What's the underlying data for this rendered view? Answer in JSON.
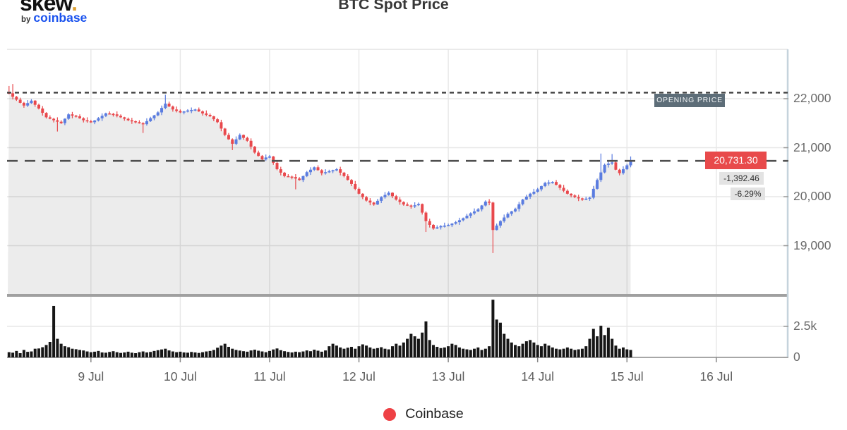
{
  "header": {
    "logo": {
      "brand": "skew",
      "dot": ".",
      "byline_prefix": "by",
      "byline_brand": "coinbase"
    },
    "title": "BTC Spot Price"
  },
  "annotations": {
    "opening_price_label": "OPENING PRICE",
    "last_price_label": "20,731.30",
    "change_abs": "-1,392.46",
    "change_pct": "-6.29%"
  },
  "legend": {
    "items": [
      {
        "label": "Coinbase",
        "color": "#ee4145"
      }
    ]
  },
  "colors": {
    "candle_up": "#5a7ce0",
    "candle_down": "#e8494d",
    "volume_bar": "#161616",
    "grid": "#e7e7e7",
    "spine_right": "#c5d3dc",
    "spine_top": "#e3e3e3",
    "separator": "#a0a0a0",
    "axis_line": "#8a8a8a",
    "dotted_line": "#3f3f3f",
    "dashed_line": "#4f4f4f",
    "area_fill": "rgba(0,0,0,0.075)",
    "opening_badge_bg": "#5d6d78",
    "price_badge_bg": "#e84a4b",
    "change_badge_bg": "#e3e3e3"
  },
  "chart_data": {
    "type": "candlestick+volume",
    "title": "BTC Spot Price",
    "series_name": "Coinbase",
    "interval": "1h",
    "x_tick_labels": [
      "9 Jul",
      "10 Jul",
      "11 Jul",
      "12 Jul",
      "13 Jul",
      "14 Jul",
      "15 Jul",
      "16 Jul"
    ],
    "candles_per_day": 24,
    "first_tick_candle_index": 22,
    "price_ticks": [
      {
        "value": 22000,
        "label": "22,000"
      },
      {
        "value": 21000,
        "label": "21,000"
      },
      {
        "value": 20000,
        "label": "20,000"
      },
      {
        "value": 19000,
        "label": "19,000"
      }
    ],
    "volume_ticks": [
      {
        "value": 2500,
        "label": "2.5k"
      },
      {
        "value": 0,
        "label": "0"
      }
    ],
    "opening_price": 22123.76,
    "last_price": 20731.3,
    "change_abs": -1392.46,
    "change_pct": -6.29,
    "open_first": 22124,
    "closes": [
      22110,
      22040,
      21980,
      21915,
      21860,
      21910,
      21960,
      21875,
      21800,
      21710,
      21620,
      21590,
      21560,
      21530,
      21500,
      21590,
      21680,
      21655,
      21640,
      21600,
      21560,
      21540,
      21520,
      21555,
      21600,
      21650,
      21700,
      21690,
      21680,
      21650,
      21620,
      21590,
      21560,
      21540,
      21520,
      21500,
      21480,
      21540,
      21600,
      21660,
      21720,
      21810,
      21900,
      21840,
      21780,
      21750,
      21720,
      21740,
      21760,
      21770,
      21780,
      21740,
      21700,
      21670,
      21640,
      21580,
      21520,
      21390,
      21260,
      21170,
      21080,
      21170,
      21260,
      21200,
      21140,
      21020,
      20900,
      20830,
      20760,
      20800,
      20820,
      20690,
      20560,
      20490,
      20420,
      20410,
      20400,
      20370,
      20340,
      20420,
      20500,
      20550,
      20600,
      20540,
      20480,
      20500,
      20520,
      20540,
      20560,
      20490,
      20420,
      20340,
      20260,
      20160,
      20060,
      19990,
      19920,
      19880,
      19840,
      19915,
      19990,
      20035,
      20080,
      20010,
      19940,
      19890,
      19840,
      19820,
      19800,
      19825,
      19850,
      19675,
      19500,
      19425,
      19350,
      19375,
      19400,
      19410,
      19420,
      19450,
      19480,
      19520,
      19560,
      19610,
      19660,
      19700,
      19740,
      19820,
      19900,
      19880,
      19320,
      19410,
      19500,
      19575,
      19650,
      19700,
      19750,
      19845,
      19940,
      20000,
      20060,
      20100,
      20150,
      20215,
      20280,
      20290,
      20300,
      20240,
      20180,
      20120,
      20060,
      20025,
      19990,
      19965,
      19940,
      19960,
      19980,
      20160,
      20340,
      20495,
      20650,
      20675,
      20700,
      20550,
      20480,
      20560,
      20640,
      20731.3
    ],
    "volumes": [
      420,
      380,
      520,
      340,
      600,
      450,
      480,
      700,
      720,
      820,
      1000,
      1250,
      4150,
      1500,
      1100,
      900,
      820,
      700,
      660,
      600,
      560,
      480,
      420,
      460,
      520,
      400,
      380,
      440,
      500,
      420,
      360,
      400,
      460,
      380,
      340,
      420,
      480,
      400,
      440,
      520,
      580,
      640,
      700,
      560,
      480,
      420,
      460,
      400,
      380,
      440,
      400,
      360,
      420,
      480,
      520,
      600,
      780,
      950,
      1100,
      850,
      700,
      600,
      550,
      500,
      460,
      560,
      620,
      540,
      480,
      420,
      520,
      640,
      720,
      580,
      500,
      440,
      400,
      460,
      420,
      480,
      560,
      500,
      620,
      540,
      460,
      560,
      900,
      1100,
      950,
      800,
      700,
      780,
      850,
      700,
      900,
      1050,
      950,
      800,
      700,
      750,
      820,
      700,
      650,
      900,
      1100,
      950,
      1200,
      1500,
      1900,
      1700,
      1500,
      2000,
      2900,
      1400,
      1000,
      850,
      750,
      800,
      900,
      1100,
      1000,
      800,
      700,
      650,
      600,
      700,
      800,
      600,
      700,
      900,
      4650,
      3050,
      2800,
      1900,
      1500,
      1200,
      1000,
      900,
      1100,
      1300,
      1400,
      1200,
      1000,
      900,
      1100,
      950,
      800,
      700,
      650,
      700,
      800,
      700,
      600,
      650,
      700,
      900,
      1500,
      2300,
      1700,
      2550,
      1800,
      2400,
      1500,
      950,
      700,
      800,
      650,
      600
    ],
    "wick_up_pattern": [
      25,
      50,
      15,
      40,
      20,
      60,
      30,
      10
    ],
    "wick_down_pattern": [
      20,
      55,
      25,
      10,
      45,
      30,
      15,
      40
    ],
    "wick_overrides": {
      "0": [
        22260,
        null
      ],
      "1": [
        22300,
        null
      ],
      "13": [
        null,
        21330
      ],
      "36": [
        null,
        21300
      ],
      "42": [
        22080,
        null
      ],
      "60": [
        null,
        20950
      ],
      "77": [
        null,
        20150
      ],
      "112": [
        null,
        19280
      ],
      "130": [
        null,
        18850
      ],
      "159": [
        20880,
        null
      ],
      "162": [
        20870,
        null
      ],
      "167": [
        20820,
        null
      ]
    },
    "price_ylim": [
      18000,
      23000
    ],
    "volume_ylim": [
      0,
      5000
    ],
    "grid": true,
    "legend_position": "bottom-center"
  }
}
